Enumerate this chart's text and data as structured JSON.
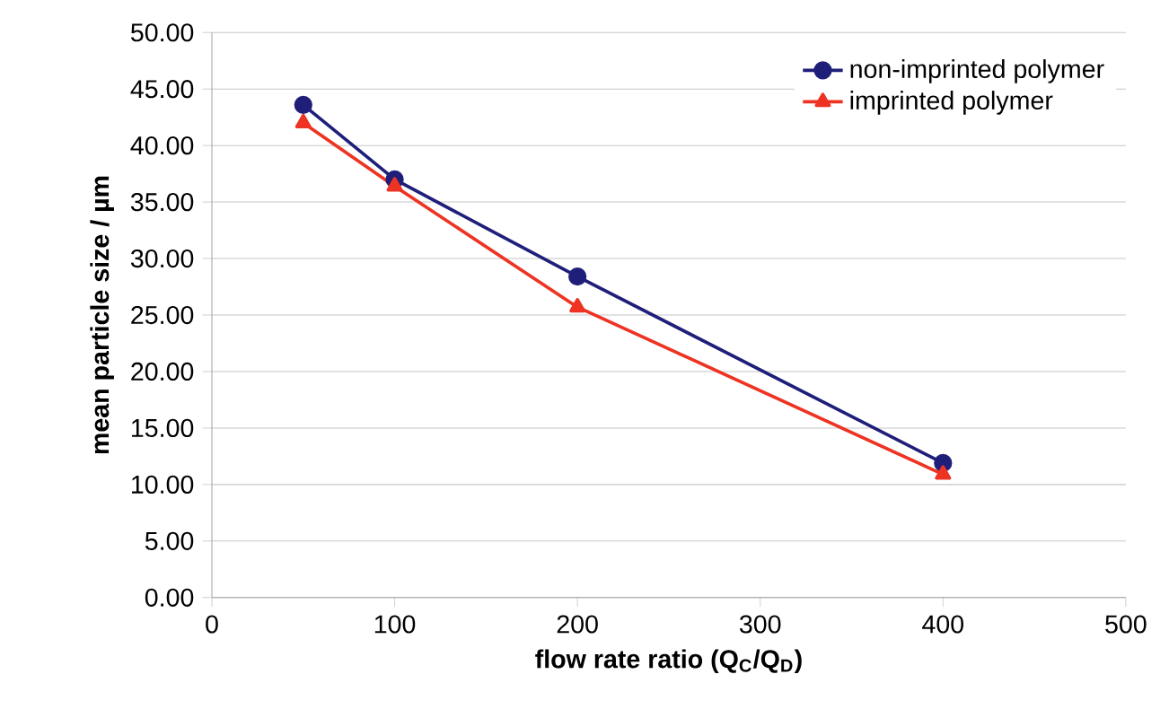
{
  "chart_data": {
    "type": "line",
    "xlabel": "flow rate ratio (Q$_{C}$/Q$_{D}$)",
    "ylabel": "mean particle size / µm",
    "x": [
      50,
      100,
      200,
      400
    ],
    "series": [
      {
        "name": "non-imprinted polymer",
        "color": "#1f1f7a",
        "marker": "circle",
        "values": [
          43.6,
          37.0,
          28.4,
          11.9
        ]
      },
      {
        "name": "imprinted polymer",
        "color": "#ee3322",
        "marker": "triangle",
        "values": [
          42.0,
          36.4,
          25.7,
          10.9
        ]
      }
    ],
    "xlim": [
      0,
      500
    ],
    "xticks": [
      0,
      100,
      200,
      300,
      400,
      500
    ],
    "ylim": [
      0,
      50
    ],
    "yticks": [
      {
        "value": 0,
        "label": "0.00"
      },
      {
        "value": 5,
        "label": "5.00"
      },
      {
        "value": 10,
        "label": "10.00"
      },
      {
        "value": 15,
        "label": "15.00"
      },
      {
        "value": 20,
        "label": "20.00"
      },
      {
        "value": 25,
        "label": "25.00"
      },
      {
        "value": 30,
        "label": "30.00"
      },
      {
        "value": 35,
        "label": "35.00"
      },
      {
        "value": 40,
        "label": "40.00"
      },
      {
        "value": 45,
        "label": "45.00"
      },
      {
        "value": 50,
        "label": "50.00"
      }
    ],
    "grid": "y",
    "legend": "top right"
  }
}
